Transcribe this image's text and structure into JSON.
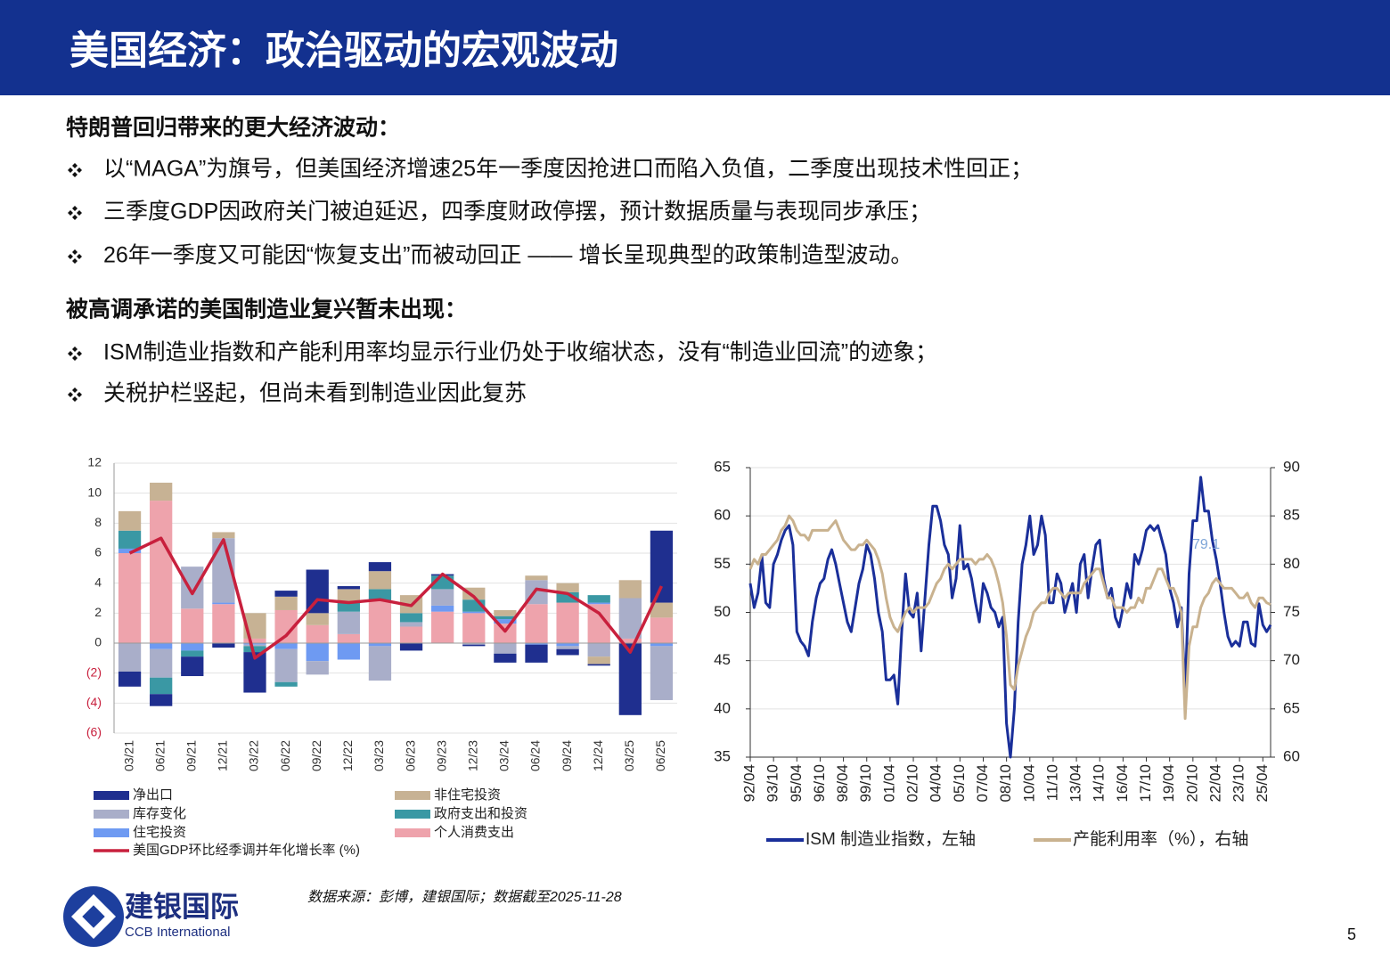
{
  "header": {
    "title": "美国经济：政治驱动的宏观波动"
  },
  "sections": [
    {
      "heading": "特朗普回归带来的更大经济波动：",
      "bullets": [
        "以“MAGA”为旗号，但美国经济增速25年一季度因抢进口而陷入负值，二季度出现技术性回正；",
        "三季度GDP因政府关门被迫延迟，四季度财政停摆，预计数据质量与表现同步承压；",
        "26年一季度又可能因“恢复支出”而被动回正 —— 增长呈现典型的政策制造型波动。"
      ]
    },
    {
      "heading": "被高调承诺的美国制造业复兴暂未出现：",
      "bullets": [
        "ISM制造业指数和产能利用率均显示行业仍处于收缩状态，没有“制造业回流”的迹象；",
        "关税护栏竖起，但尚未看到制造业因此复苏"
      ]
    }
  ],
  "chart_data": [
    {
      "type": "bar",
      "stacked": true,
      "grid": true,
      "categories": [
        "03/21",
        "06/21",
        "09/21",
        "12/21",
        "03/22",
        "06/22",
        "09/22",
        "12/22",
        "03/23",
        "06/23",
        "09/23",
        "12/23",
        "03/24",
        "06/24",
        "09/24",
        "12/24",
        "03/25",
        "06/25"
      ],
      "ylim": [
        -6,
        12
      ],
      "yticks": [
        12,
        10,
        8,
        6,
        4,
        2,
        0,
        {
          "value": -2,
          "label": "(2)"
        },
        {
          "value": -4,
          "label": "(4)"
        },
        {
          "value": -6,
          "label": "(6)"
        }
      ],
      "series": [
        {
          "name": "个人消费支出",
          "color": "#eea3ac",
          "values": [
            6.0,
            9.5,
            2.3,
            2.6,
            0.3,
            2.2,
            1.2,
            0.6,
            2.8,
            1.1,
            2.1,
            2.0,
            1.3,
            2.6,
            2.7,
            2.6,
            0.3,
            1.7
          ]
        },
        {
          "name": "住宅投资",
          "color": "#6e9af2",
          "values": [
            0.3,
            -0.4,
            -0.5,
            0.1,
            -0.1,
            -0.4,
            -1.2,
            -1.1,
            -0.2,
            0.0,
            0.4,
            0.1,
            0.3,
            -0.1,
            -0.2,
            0.1,
            0.0,
            -0.2
          ]
        },
        {
          "name": "库存变化",
          "color": "#a9aec9",
          "values": [
            -1.9,
            -1.9,
            2.8,
            4.3,
            -0.1,
            -2.2,
            -0.9,
            1.5,
            -2.3,
            0.3,
            1.1,
            -0.1,
            -0.7,
            1.6,
            -0.2,
            -0.9,
            2.7,
            -3.6
          ]
        },
        {
          "name": "政府支出和投资",
          "color": "#3a98a4",
          "values": [
            1.2,
            -1.1,
            -0.4,
            0.0,
            -0.4,
            -0.3,
            0.0,
            0.6,
            0.8,
            0.6,
            0.9,
            0.8,
            0.2,
            0.0,
            0.7,
            0.5,
            0.0,
            0.0
          ]
        },
        {
          "name": "非住宅投资",
          "color": "#c7b294",
          "values": [
            1.3,
            1.2,
            0.0,
            0.4,
            1.7,
            0.9,
            0.8,
            0.9,
            1.2,
            1.2,
            0.0,
            0.8,
            0.4,
            0.3,
            0.6,
            -0.5,
            1.2,
            1.0
          ]
        },
        {
          "name": "净出口",
          "color": "#1f2f8f",
          "values": [
            -1.0,
            -0.8,
            -1.3,
            -0.3,
            -2.7,
            0.4,
            2.9,
            0.2,
            0.6,
            -0.5,
            0.1,
            -0.1,
            -0.6,
            -1.2,
            -0.4,
            -0.1,
            -4.8,
            4.8
          ]
        },
        {
          "name": "美国GDP环比经季调并年化增长率 (%)",
          "type": "line",
          "color": "#c8203d",
          "values": [
            6.0,
            7.0,
            3.3,
            6.9,
            -1.0,
            0.5,
            2.9,
            2.7,
            2.9,
            2.5,
            4.6,
            3.1,
            0.8,
            3.6,
            3.3,
            2.0,
            -0.6,
            3.8
          ]
        }
      ]
    },
    {
      "type": "line",
      "grid": true,
      "x": [
        "92/04",
        "92/07",
        "92/10",
        "93/01",
        "93/04",
        "93/07",
        "93/10",
        "94/01",
        "94/04",
        "94/07",
        "94/10",
        "95/01",
        "95/04",
        "95/07",
        "95/10",
        "96/01",
        "96/04",
        "96/07",
        "96/10",
        "97/01",
        "97/04",
        "97/07",
        "97/10",
        "98/01",
        "98/04",
        "98/07",
        "98/10",
        "99/01",
        "99/04",
        "99/07",
        "99/10",
        "00/01",
        "00/04",
        "00/07",
        "00/10",
        "01/01",
        "01/04",
        "01/07",
        "01/10",
        "02/01",
        "02/04",
        "02/07",
        "02/10",
        "03/01",
        "03/04",
        "03/07",
        "03/10",
        "04/01",
        "04/04",
        "04/07",
        "04/10",
        "05/01",
        "05/04",
        "05/07",
        "05/10",
        "06/01",
        "06/04",
        "06/07",
        "06/10",
        "07/01",
        "07/04",
        "07/07",
        "07/10",
        "08/01",
        "08/04",
        "08/07",
        "08/10",
        "09/01",
        "09/04",
        "09/07",
        "09/10",
        "10/01",
        "10/04",
        "10/07",
        "10/10",
        "11/01",
        "11/04",
        "11/07",
        "11/10",
        "12/01",
        "12/04",
        "12/07",
        "12/10",
        "13/01",
        "13/04",
        "13/07",
        "13/10",
        "14/01",
        "14/04",
        "14/07",
        "14/10",
        "15/01",
        "15/04",
        "15/07",
        "15/10",
        "16/01",
        "16/04",
        "16/07",
        "16/10",
        "17/01",
        "17/04",
        "17/07",
        "17/10",
        "18/01",
        "18/04",
        "18/07",
        "18/10",
        "19/01",
        "19/04",
        "19/07",
        "19/10",
        "20/01",
        "20/04",
        "20/07",
        "20/10",
        "21/01",
        "21/04",
        "21/07",
        "21/10",
        "22/01",
        "22/04",
        "22/07",
        "22/10",
        "23/01",
        "23/04",
        "23/07",
        "23/10",
        "24/01",
        "24/04",
        "24/07",
        "24/10",
        "25/01",
        "25/04",
        "25/07",
        "25/10"
      ],
      "xticks": [
        "92/04",
        "93/10",
        "95/04",
        "96/10",
        "98/04",
        "99/10",
        "01/04",
        "02/10",
        "04/04",
        "05/10",
        "07/04",
        "08/10",
        "10/04",
        "11/10",
        "13/04",
        "14/10",
        "16/04",
        "17/10",
        "19/04",
        "20/10",
        "22/04",
        "23/10",
        "25/04"
      ],
      "ylim": [
        35,
        65
      ],
      "yticks": [
        35,
        40,
        45,
        50,
        55,
        60,
        65
      ],
      "y2lim": [
        60,
        90
      ],
      "y2ticks": [
        60,
        65,
        70,
        75,
        80,
        85,
        90
      ],
      "annotations": [
        "79.1"
      ],
      "series": [
        {
          "name": "ISM 制造业指数，左轴",
          "color": "#1a2f9a",
          "values": [
            53.0,
            50.5,
            52.0,
            55.8,
            51.0,
            50.5,
            55.0,
            56.0,
            57.5,
            58.5,
            59.0,
            57.0,
            48.0,
            47.0,
            46.5,
            45.5,
            49.0,
            51.5,
            53.0,
            53.5,
            55.5,
            56.5,
            55.0,
            53.0,
            51.0,
            49.0,
            48.0,
            50.5,
            53.0,
            54.5,
            57.0,
            56.0,
            53.5,
            50.0,
            48.0,
            43.0,
            43.0,
            43.5,
            40.5,
            48.0,
            54.0,
            50.0,
            49.5,
            52.0,
            46.0,
            51.5,
            57.0,
            61.0,
            61.0,
            59.5,
            57.0,
            56.0,
            51.5,
            53.5,
            59.0,
            54.5,
            55.0,
            53.5,
            51.0,
            49.0,
            53.0,
            52.0,
            50.5,
            50.0,
            48.5,
            49.5,
            38.5,
            35.0,
            40.0,
            49.0,
            55.0,
            57.0,
            60.0,
            56.0,
            57.0,
            60.0,
            58.0,
            51.0,
            51.0,
            54.0,
            53.0,
            50.0,
            51.5,
            53.0,
            50.0,
            55.0,
            56.0,
            51.5,
            54.5,
            57.0,
            57.5,
            53.5,
            51.5,
            52.5,
            49.5,
            48.5,
            50.5,
            53.0,
            51.5,
            56.0,
            55.0,
            56.5,
            58.5,
            59.0,
            58.5,
            59.0,
            57.5,
            56.0,
            52.5,
            51.0,
            48.5,
            50.5,
            41.5,
            54.0,
            59.5,
            59.5,
            64.0,
            60.5,
            60.5,
            57.5,
            55.5,
            53.0,
            50.0,
            47.5,
            46.5,
            47.0,
            46.5,
            49.0,
            49.0,
            46.8,
            46.5,
            50.9,
            48.7,
            48.0,
            48.7
          ]
        },
        {
          "name": "产能利用率（%），右轴",
          "axis": "y2",
          "color": "#c9b28f",
          "values": [
            79.5,
            80.5,
            80.0,
            81.0,
            81.0,
            81.5,
            82.0,
            82.5,
            83.5,
            84.0,
            85.0,
            84.5,
            83.5,
            83.0,
            83.0,
            82.5,
            83.5,
            83.5,
            83.5,
            83.5,
            83.5,
            84.0,
            84.5,
            83.5,
            82.5,
            82.0,
            81.5,
            81.5,
            82.0,
            82.0,
            82.5,
            82.0,
            81.5,
            80.5,
            79.0,
            76.5,
            74.5,
            73.5,
            73.0,
            74.0,
            75.0,
            75.5,
            75.0,
            75.5,
            75.5,
            75.5,
            76.0,
            77.0,
            78.0,
            78.5,
            79.5,
            80.0,
            79.5,
            80.0,
            80.5,
            80.5,
            80.5,
            80.5,
            80.0,
            80.5,
            80.5,
            81.0,
            80.5,
            79.5,
            78.0,
            76.0,
            72.5,
            67.5,
            67.0,
            69.5,
            71.0,
            72.5,
            73.5,
            75.0,
            75.5,
            76.0,
            76.0,
            77.0,
            77.5,
            77.5,
            77.0,
            76.5,
            77.0,
            77.0,
            77.0,
            77.0,
            78.0,
            78.5,
            79.0,
            79.5,
            79.5,
            78.0,
            76.5,
            76.5,
            75.5,
            75.5,
            75.5,
            75.0,
            75.5,
            75.5,
            76.5,
            76.0,
            77.5,
            77.5,
            78.5,
            79.5,
            79.5,
            78.5,
            77.5,
            77.5,
            76.5,
            75.0,
            64.0,
            71.5,
            73.5,
            73.5,
            75.5,
            76.5,
            77.0,
            78.0,
            78.5,
            78.0,
            77.5,
            77.5,
            77.5,
            77.0,
            76.5,
            76.5,
            77.0,
            76.0,
            75.5,
            76.5,
            76.5,
            76.0,
            75.8
          ]
        }
      ]
    }
  ],
  "source": "数据来源：彭博，建银国际；数据截至2025-11-28",
  "logo": {
    "name": "建银国际",
    "subtitle": "CCB International"
  },
  "page_number": "5"
}
